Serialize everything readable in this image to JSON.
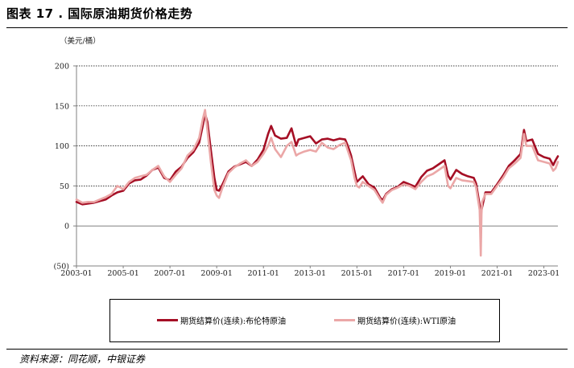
{
  "header": {
    "title": "图表 17 . 国际原油期货价格走势",
    "unit": "（美元/桶）"
  },
  "footer": {
    "source": "资料来源：同花顺，中银证券"
  },
  "colors": {
    "brent": "#a50f25",
    "wti": "#eba7a7",
    "grid": "#000000",
    "axis": "#808080"
  },
  "chart_data": {
    "type": "line",
    "title": "",
    "xlabel": "",
    "ylabel": "美元/桶",
    "ylim": [
      -50,
      200
    ],
    "yticks": [
      "(50)",
      "0",
      "50",
      "100",
      "150",
      "200"
    ],
    "xlim": [
      2003.0,
      2023.6
    ],
    "xticks": [
      "2003-01",
      "2005-01",
      "2007-01",
      "2009-01",
      "2011-01",
      "2013-01",
      "2015-01",
      "2017-01",
      "2019-01",
      "2021-01",
      "2023-01"
    ],
    "grid": "horizontal dashed",
    "legend": "bottom",
    "series": [
      {
        "name": "期货结算价(连续):布伦特原油",
        "x": [
          2003.0,
          2003.25,
          2003.5,
          2003.75,
          2004.0,
          2004.25,
          2004.5,
          2004.75,
          2005.0,
          2005.25,
          2005.5,
          2005.75,
          2006.0,
          2006.25,
          2006.5,
          2006.75,
          2007.0,
          2007.25,
          2007.5,
          2007.75,
          2008.0,
          2008.25,
          2008.4,
          2008.5,
          2008.6,
          2008.75,
          2008.9,
          2009.0,
          2009.1,
          2009.25,
          2009.5,
          2009.75,
          2010.0,
          2010.25,
          2010.5,
          2010.75,
          2011.0,
          2011.2,
          2011.33,
          2011.5,
          2011.75,
          2012.0,
          2012.2,
          2012.4,
          2012.5,
          2012.75,
          2013.0,
          2013.25,
          2013.5,
          2013.75,
          2014.0,
          2014.25,
          2014.5,
          2014.6,
          2014.75,
          2014.9,
          2015.0,
          2015.1,
          2015.25,
          2015.5,
          2015.75,
          2016.0,
          2016.1,
          2016.25,
          2016.5,
          2016.75,
          2017.0,
          2017.25,
          2017.5,
          2017.75,
          2018.0,
          2018.25,
          2018.5,
          2018.75,
          2018.9,
          2019.0,
          2019.25,
          2019.5,
          2019.75,
          2020.0,
          2020.1,
          2020.25,
          2020.33,
          2020.5,
          2020.75,
          2021.0,
          2021.25,
          2021.5,
          2021.75,
          2022.0,
          2022.15,
          2022.25,
          2022.5,
          2022.75,
          2023.0,
          2023.25,
          2023.4,
          2023.5,
          2023.6
        ],
        "values": [
          30,
          27,
          28,
          29,
          31,
          33,
          38,
          42,
          44,
          53,
          57,
          58,
          63,
          70,
          73,
          60,
          57,
          68,
          74,
          85,
          92,
          104,
          125,
          140,
          130,
          95,
          60,
          45,
          44,
          52,
          68,
          74,
          77,
          80,
          75,
          83,
          95,
          115,
          125,
          113,
          109,
          110,
          122,
          100,
          108,
          110,
          112,
          103,
          108,
          109,
          107,
          109,
          108,
          101,
          88,
          68,
          55,
          58,
          62,
          52,
          48,
          35,
          32,
          40,
          46,
          49,
          55,
          52,
          49,
          61,
          69,
          72,
          77,
          82,
          63,
          58,
          70,
          65,
          62,
          60,
          53,
          26,
          20,
          42,
          42,
          52,
          63,
          75,
          82,
          90,
          120,
          106,
          108,
          90,
          86,
          84,
          76,
          82,
          87
        ]
      },
      {
        "name": "期货结算价(连续):WTI原油",
        "x": [
          2003.0,
          2003.25,
          2003.5,
          2003.75,
          2004.0,
          2004.25,
          2004.5,
          2004.75,
          2005.0,
          2005.25,
          2005.5,
          2005.75,
          2006.0,
          2006.25,
          2006.5,
          2006.75,
          2007.0,
          2007.25,
          2007.5,
          2007.75,
          2008.0,
          2008.25,
          2008.4,
          2008.5,
          2008.6,
          2008.75,
          2008.9,
          2009.0,
          2009.1,
          2009.25,
          2009.5,
          2009.75,
          2010.0,
          2010.25,
          2010.5,
          2010.75,
          2011.0,
          2011.2,
          2011.33,
          2011.5,
          2011.75,
          2012.0,
          2012.2,
          2012.4,
          2012.5,
          2012.75,
          2013.0,
          2013.25,
          2013.5,
          2013.75,
          2014.0,
          2014.25,
          2014.5,
          2014.6,
          2014.75,
          2014.9,
          2015.0,
          2015.1,
          2015.25,
          2015.5,
          2015.75,
          2016.0,
          2016.1,
          2016.25,
          2016.5,
          2016.75,
          2017.0,
          2017.25,
          2017.5,
          2017.75,
          2018.0,
          2018.25,
          2018.5,
          2018.75,
          2018.9,
          2019.0,
          2019.25,
          2019.5,
          2019.75,
          2020.0,
          2020.1,
          2020.25,
          2020.3,
          2020.33,
          2020.36,
          2020.5,
          2020.75,
          2021.0,
          2021.25,
          2021.5,
          2021.75,
          2022.0,
          2022.15,
          2022.25,
          2022.5,
          2022.75,
          2023.0,
          2023.25,
          2023.4,
          2023.5,
          2023.6
        ],
        "values": [
          33,
          29,
          30,
          30,
          33,
          36,
          40,
          50,
          46,
          55,
          60,
          62,
          64,
          70,
          75,
          62,
          55,
          64,
          72,
          88,
          95,
          110,
          133,
          145,
          120,
          80,
          45,
          38,
          35,
          48,
          66,
          73,
          78,
          82,
          75,
          80,
          90,
          100,
          110,
          96,
          86,
          100,
          105,
          88,
          90,
          93,
          95,
          93,
          104,
          98,
          96,
          101,
          104,
          95,
          82,
          60,
          50,
          48,
          55,
          50,
          45,
          33,
          29,
          39,
          45,
          48,
          52,
          50,
          46,
          55,
          62,
          65,
          70,
          75,
          50,
          47,
          60,
          57,
          56,
          55,
          48,
          20,
          -37,
          15,
          30,
          40,
          40,
          50,
          60,
          72,
          78,
          85,
          115,
          100,
          100,
          82,
          80,
          78,
          69,
          72,
          80
        ]
      }
    ]
  }
}
